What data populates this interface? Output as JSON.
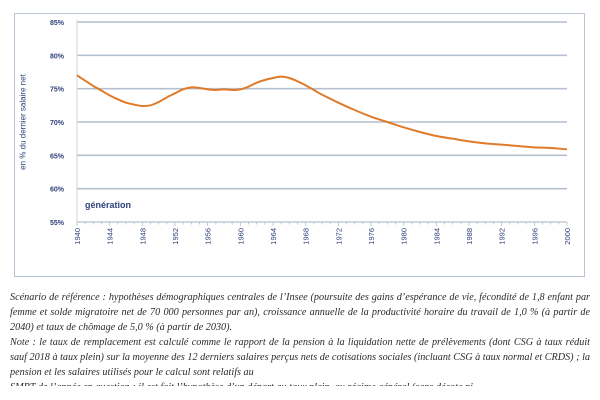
{
  "chart_data": {
    "type": "line",
    "title": "",
    "xlabel": "génération",
    "ylabel": "en % du dernier salaire net",
    "xlim": [
      1940,
      2000
    ],
    "ylim": [
      55,
      85
    ],
    "grid": true,
    "legend": "none",
    "y_ticks": [
      "55%",
      "60%",
      "65%",
      "70%",
      "75%",
      "80%",
      "85%"
    ],
    "y_tick_values": [
      55,
      60,
      65,
      70,
      75,
      80,
      85
    ],
    "x_ticks": [
      "1940",
      "1944",
      "1948",
      "1952",
      "1956",
      "1960",
      "1964",
      "1968",
      "1972",
      "1976",
      "1980",
      "1984",
      "1988",
      "1992",
      "1996",
      "2000"
    ],
    "x_tick_values": [
      1940,
      1944,
      1948,
      1952,
      1956,
      1960,
      1964,
      1968,
      1972,
      1976,
      1980,
      1984,
      1988,
      1992,
      1996,
      2000
    ],
    "color": "#e07b2a",
    "series": [
      {
        "name": "taux de remplacement",
        "x": [
          1940,
          1941,
          1942,
          1943,
          1944,
          1945,
          1946,
          1947,
          1948,
          1949,
          1950,
          1951,
          1952,
          1953,
          1954,
          1955,
          1956,
          1957,
          1958,
          1959,
          1960,
          1961,
          1962,
          1963,
          1964,
          1965,
          1966,
          1967,
          1968,
          1969,
          1970,
          1972,
          1974,
          1976,
          1978,
          1980,
          1982,
          1984,
          1986,
          1988,
          1990,
          1992,
          1994,
          1996,
          1998,
          2000
        ],
        "values": [
          77.0,
          76.2,
          75.4,
          74.7,
          74.0,
          73.4,
          72.9,
          72.6,
          72.4,
          72.5,
          73.0,
          73.7,
          74.3,
          74.9,
          75.2,
          75.1,
          74.9,
          74.8,
          74.9,
          74.8,
          74.9,
          75.3,
          75.9,
          76.3,
          76.6,
          76.8,
          76.6,
          76.1,
          75.5,
          74.8,
          74.1,
          72.9,
          71.8,
          70.8,
          70.0,
          69.2,
          68.5,
          67.9,
          67.5,
          67.1,
          66.8,
          66.6,
          66.4,
          66.2,
          66.1,
          65.9
        ]
      }
    ]
  },
  "caption": {
    "scenario": "Scénario de référence : hypothèses démographiques centrales de l’Insee (poursuite des gains d’espérance de vie, fécondité de 1,8 enfant par femme et solde migratoire net de 70 000 personnes par an), croissance annuelle de la productivité horaire du travail de 1,0 % (à partir de 2040) et taux de chômage de 5,0 % (à partir de 2030).",
    "note": "Note : le taux de remplacement est calculé comme le rapport de la pension à la liquidation nette de prélèvements (dont CSG à taux réduit sauf 2018 à taux plein) sur la moyenne des 12 derniers salaires perçus nets de cotisations sociales (incluant CSG à taux normal et CRDS) ; la pension et les salaires utilisés pour le calcul sont relatifs au",
    "note_cut": "SMPT de l’année en question ; il est fait l’hypothèse d’un départ au taux plein, au régime général (sans décote ni"
  }
}
